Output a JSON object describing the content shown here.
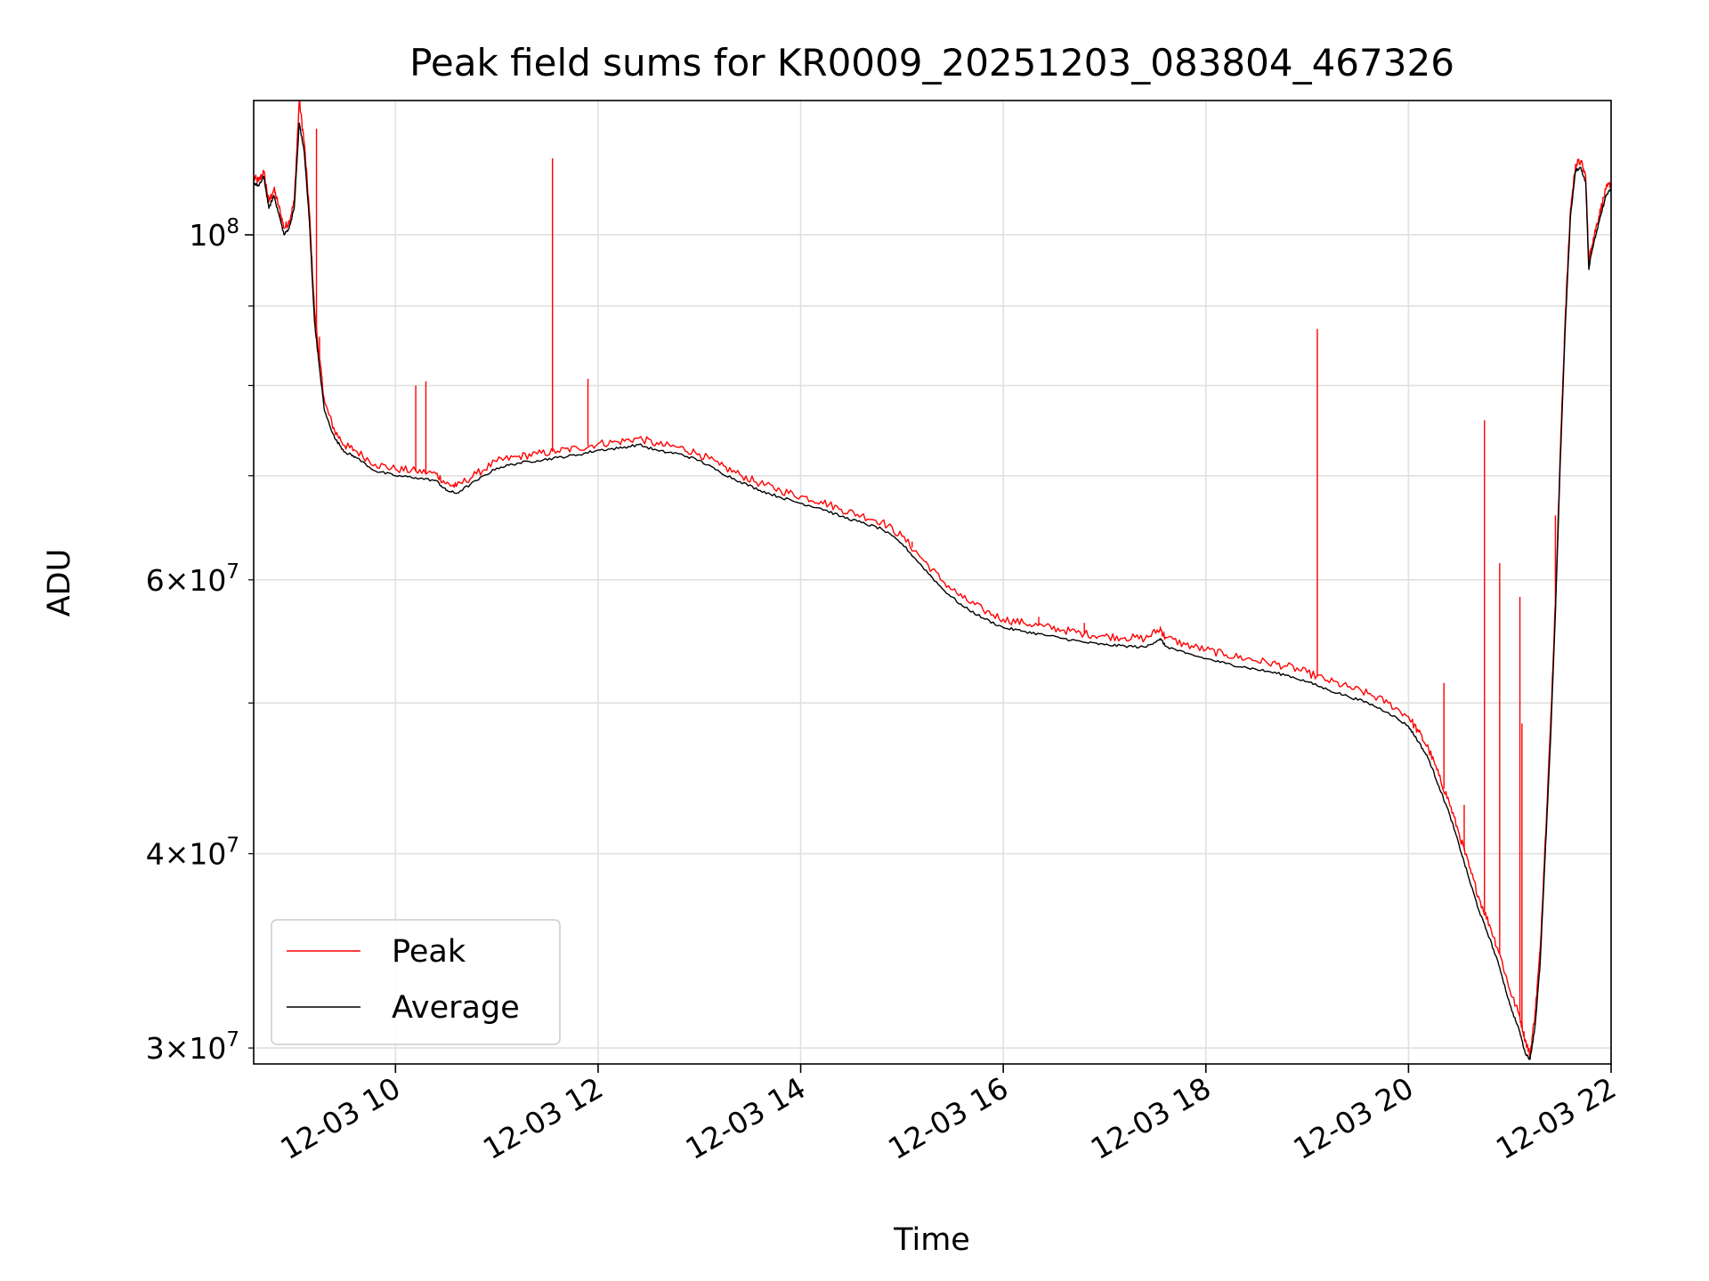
{
  "chart_data": {
    "type": "line",
    "title": "Peak field sums for KR0009_20251203_083804_467326",
    "xlabel": "Time",
    "ylabel": "ADU",
    "yscale": "log",
    "xlim": [
      8.6,
      22.0
    ],
    "ylim": [
      29300000,
      122000000
    ],
    "x_unit": "hours on 2025-12-03",
    "grid": true,
    "legend_position": "lower-left",
    "x_ticks": [
      {
        "value": 10,
        "label": "12-03 10"
      },
      {
        "value": 12,
        "label": "12-03 12"
      },
      {
        "value": 14,
        "label": "12-03 14"
      },
      {
        "value": 16,
        "label": "12-03 16"
      },
      {
        "value": 18,
        "label": "12-03 18"
      },
      {
        "value": 20,
        "label": "12-03 20"
      },
      {
        "value": 22,
        "label": "12-03 22"
      }
    ],
    "y_major_ticks": [
      {
        "value": 100000000,
        "base": "10",
        "exp": "8"
      }
    ],
    "y_minor_ticks": [
      {
        "value": 30000000,
        "coef": "3",
        "base": "10",
        "exp": "7"
      },
      {
        "value": 40000000,
        "coef": "4",
        "base": "10",
        "exp": "7"
      },
      {
        "value": 50000000,
        "coef": "",
        "base": "",
        "exp": ""
      },
      {
        "value": 60000000,
        "coef": "6",
        "base": "10",
        "exp": "7"
      },
      {
        "value": 70000000,
        "coef": "",
        "base": "",
        "exp": ""
      },
      {
        "value": 80000000,
        "coef": "",
        "base": "",
        "exp": ""
      },
      {
        "value": 90000000,
        "coef": "",
        "base": "",
        "exp": ""
      }
    ],
    "series": [
      {
        "name": "Average",
        "color": "#000000",
        "points": [
          [
            8.6,
            108000000
          ],
          [
            8.65,
            107500000
          ],
          [
            8.7,
            109000000
          ],
          [
            8.75,
            104000000
          ],
          [
            8.8,
            106000000
          ],
          [
            8.85,
            103000000
          ],
          [
            8.9,
            100000000
          ],
          [
            8.95,
            101000000
          ],
          [
            9.0,
            104000000
          ],
          [
            9.05,
            118000000
          ],
          [
            9.1,
            113000000
          ],
          [
            9.15,
            102000000
          ],
          [
            9.2,
            88000000
          ],
          [
            9.25,
            82000000
          ],
          [
            9.3,
            77000000
          ],
          [
            9.4,
            74000000
          ],
          [
            9.5,
            72500000
          ],
          [
            9.6,
            72000000
          ],
          [
            9.8,
            70500000
          ],
          [
            10.0,
            70000000
          ],
          [
            10.2,
            69800000
          ],
          [
            10.4,
            69500000
          ],
          [
            10.5,
            68500000
          ],
          [
            10.6,
            68200000
          ],
          [
            10.8,
            69500000
          ],
          [
            11.0,
            70800000
          ],
          [
            11.2,
            71300000
          ],
          [
            11.4,
            71600000
          ],
          [
            11.6,
            71900000
          ],
          [
            11.8,
            72200000
          ],
          [
            12.0,
            72700000
          ],
          [
            12.2,
            72900000
          ],
          [
            12.4,
            73300000
          ],
          [
            12.6,
            72600000
          ],
          [
            12.8,
            72300000
          ],
          [
            13.0,
            71600000
          ],
          [
            13.2,
            70400000
          ],
          [
            13.4,
            69400000
          ],
          [
            13.6,
            68500000
          ],
          [
            13.8,
            67800000
          ],
          [
            14.0,
            67200000
          ],
          [
            14.2,
            66700000
          ],
          [
            14.4,
            65900000
          ],
          [
            14.6,
            65300000
          ],
          [
            14.8,
            64700000
          ],
          [
            15.0,
            63300000
          ],
          [
            15.2,
            61200000
          ],
          [
            15.4,
            59200000
          ],
          [
            15.6,
            57700000
          ],
          [
            15.8,
            56700000
          ],
          [
            16.0,
            55900000
          ],
          [
            16.2,
            55600000
          ],
          [
            16.4,
            55300000
          ],
          [
            16.6,
            55000000
          ],
          [
            16.8,
            54700000
          ],
          [
            17.0,
            54500000
          ],
          [
            17.2,
            54400000
          ],
          [
            17.4,
            54300000
          ],
          [
            17.55,
            55000000
          ],
          [
            17.6,
            54400000
          ],
          [
            17.8,
            53800000
          ],
          [
            18.0,
            53400000
          ],
          [
            18.2,
            53000000
          ],
          [
            18.4,
            52700000
          ],
          [
            18.6,
            52400000
          ],
          [
            18.8,
            52100000
          ],
          [
            19.0,
            51600000
          ],
          [
            19.2,
            51000000
          ],
          [
            19.4,
            50500000
          ],
          [
            19.6,
            50000000
          ],
          [
            19.8,
            49300000
          ],
          [
            20.0,
            48300000
          ],
          [
            20.1,
            47200000
          ],
          [
            20.2,
            46000000
          ],
          [
            20.3,
            44200000
          ],
          [
            20.4,
            42500000
          ],
          [
            20.5,
            40500000
          ],
          [
            20.6,
            38500000
          ],
          [
            20.7,
            36700000
          ],
          [
            20.8,
            35300000
          ],
          [
            20.9,
            33800000
          ],
          [
            21.0,
            32000000
          ],
          [
            21.1,
            30700000
          ],
          [
            21.15,
            29800000
          ],
          [
            21.2,
            29500000
          ],
          [
            21.25,
            31000000
          ],
          [
            21.3,
            34000000
          ],
          [
            21.35,
            40000000
          ],
          [
            21.4,
            47000000
          ],
          [
            21.45,
            57000000
          ],
          [
            21.5,
            72000000
          ],
          [
            21.55,
            88000000
          ],
          [
            21.6,
            103000000
          ],
          [
            21.65,
            110000000
          ],
          [
            21.7,
            110500000
          ],
          [
            21.75,
            108000000
          ],
          [
            21.78,
            95000000
          ],
          [
            21.8,
            97000000
          ],
          [
            21.85,
            100000000
          ],
          [
            21.9,
            103000000
          ],
          [
            21.95,
            106000000
          ],
          [
            22.0,
            107000000
          ]
        ]
      },
      {
        "name": "Peak",
        "color": "#ff0000",
        "points": [
          [
            8.6,
            108800000
          ],
          [
            8.65,
            108300000
          ],
          [
            8.7,
            109800000
          ],
          [
            8.75,
            105000000
          ],
          [
            8.8,
            107000000
          ],
          [
            8.85,
            104200000
          ],
          [
            8.9,
            101000000
          ],
          [
            8.95,
            102000000
          ],
          [
            9.0,
            105000000
          ],
          [
            9.05,
            122000000
          ],
          [
            9.1,
            114500000
          ],
          [
            9.15,
            103500000
          ],
          [
            9.2,
            89500000
          ],
          [
            9.25,
            83200000
          ],
          [
            9.3,
            78000000
          ],
          [
            9.4,
            74800000
          ],
          [
            9.5,
            73200000
          ],
          [
            9.6,
            72700000
          ],
          [
            9.8,
            71200000
          ],
          [
            10.0,
            70700000
          ],
          [
            10.2,
            70500000
          ],
          [
            10.4,
            70200000
          ],
          [
            10.5,
            69200000
          ],
          [
            10.6,
            68900000
          ],
          [
            10.8,
            70200000
          ],
          [
            11.0,
            71500000
          ],
          [
            11.2,
            72000000
          ],
          [
            11.4,
            72300000
          ],
          [
            11.6,
            72600000
          ],
          [
            11.8,
            72900000
          ],
          [
            12.0,
            73400000
          ],
          [
            12.2,
            73600000
          ],
          [
            12.4,
            74000000
          ],
          [
            12.6,
            73300000
          ],
          [
            12.8,
            73000000
          ],
          [
            13.0,
            72300000
          ],
          [
            13.2,
            71100000
          ],
          [
            13.4,
            70100000
          ],
          [
            13.6,
            69200000
          ],
          [
            13.8,
            68500000
          ],
          [
            14.0,
            67900000
          ],
          [
            14.2,
            67400000
          ],
          [
            14.4,
            66600000
          ],
          [
            14.6,
            66000000
          ],
          [
            14.8,
            65400000
          ],
          [
            15.0,
            64000000
          ],
          [
            15.2,
            61900000
          ],
          [
            15.4,
            59900000
          ],
          [
            15.6,
            58400000
          ],
          [
            15.8,
            57400000
          ],
          [
            16.0,
            56600000
          ],
          [
            16.2,
            56300000
          ],
          [
            16.4,
            56000000
          ],
          [
            16.6,
            55700000
          ],
          [
            16.8,
            55400000
          ],
          [
            17.0,
            55200000
          ],
          [
            17.2,
            55100000
          ],
          [
            17.4,
            55000000
          ],
          [
            17.55,
            55800000
          ],
          [
            17.6,
            55100000
          ],
          [
            17.8,
            54500000
          ],
          [
            18.0,
            54100000
          ],
          [
            18.2,
            53700000
          ],
          [
            18.4,
            53400000
          ],
          [
            18.6,
            53100000
          ],
          [
            18.8,
            52800000
          ],
          [
            19.0,
            52300000
          ],
          [
            19.2,
            51700000
          ],
          [
            19.4,
            51200000
          ],
          [
            19.6,
            50700000
          ],
          [
            19.8,
            50000000
          ],
          [
            20.0,
            49000000
          ],
          [
            20.1,
            47900000
          ],
          [
            20.2,
            46700000
          ],
          [
            20.3,
            44900000
          ],
          [
            20.4,
            43200000
          ],
          [
            20.5,
            41200000
          ],
          [
            20.6,
            39200000
          ],
          [
            20.7,
            37400000
          ],
          [
            20.8,
            36000000
          ],
          [
            20.9,
            34500000
          ],
          [
            21.0,
            32700000
          ],
          [
            21.1,
            31400000
          ],
          [
            21.15,
            30400000
          ],
          [
            21.2,
            29700000
          ],
          [
            21.25,
            31600000
          ],
          [
            21.3,
            34700000
          ],
          [
            21.35,
            40800000
          ],
          [
            21.4,
            48000000
          ],
          [
            21.45,
            58000000
          ],
          [
            21.5,
            73000000
          ],
          [
            21.55,
            89500000
          ],
          [
            21.6,
            104000000
          ],
          [
            21.65,
            111000000
          ],
          [
            21.7,
            111500000
          ],
          [
            21.75,
            109000000
          ],
          [
            21.78,
            96000000
          ],
          [
            21.8,
            98000000
          ],
          [
            21.85,
            101000000
          ],
          [
            21.9,
            104000000
          ],
          [
            21.95,
            107000000
          ],
          [
            22.0,
            108000000
          ]
        ],
        "spikes": [
          [
            9.22,
            117000000
          ],
          [
            9.25,
            86000000
          ],
          [
            10.2,
            80000000
          ],
          [
            10.3,
            80500000
          ],
          [
            11.55,
            112000000
          ],
          [
            11.9,
            80800000
          ],
          [
            12.35,
            73800000
          ],
          [
            15.1,
            63500000
          ],
          [
            16.35,
            56800000
          ],
          [
            16.8,
            56300000
          ],
          [
            17.55,
            56000000
          ],
          [
            19.1,
            87000000
          ],
          [
            20.35,
            51500000
          ],
          [
            20.55,
            43000000
          ],
          [
            20.75,
            76000000
          ],
          [
            20.9,
            61500000
          ],
          [
            21.1,
            58500000
          ],
          [
            21.12,
            48500000
          ],
          [
            21.45,
            66000000
          ]
        ]
      }
    ]
  }
}
